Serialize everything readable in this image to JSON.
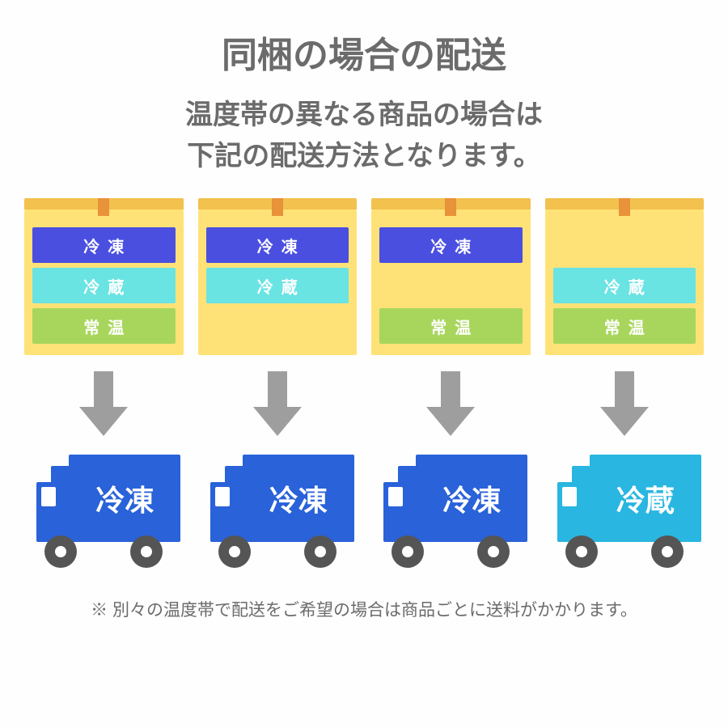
{
  "colors": {
    "text_main": "#6b6b6b",
    "box_fill": "#ffe277",
    "box_lid": "#f2c14e",
    "box_tape": "#e8923a",
    "frozen_bg": "#4a4fe0",
    "frozen_fg": "#ffffff",
    "chilled_bg": "#6ae3e3",
    "chilled_fg": "#ffffff",
    "ambient_bg": "#a8d65c",
    "ambient_fg": "#ffffff",
    "arrow": "#9e9e9e",
    "truck_frozen": "#2962d9",
    "truck_chilled": "#29b6e0",
    "wheel": "#555555"
  },
  "typography": {
    "title_size": 44,
    "subtitle_size": 34,
    "slot_size": 20,
    "truck_label_size": 36,
    "footnote_size": 21
  },
  "title": "同梱の場合の配送",
  "subtitle_line1": "温度帯の異なる商品の場合は",
  "subtitle_line2": "下記の配送方法となります。",
  "labels": {
    "frozen": "冷凍",
    "chilled": "冷蔵",
    "ambient": "常温"
  },
  "columns": [
    {
      "slots": [
        "frozen",
        "chilled",
        "ambient"
      ],
      "truck": "frozen"
    },
    {
      "slots": [
        "frozen",
        "chilled",
        null
      ],
      "truck": "frozen"
    },
    {
      "slots": [
        "frozen",
        null,
        "ambient"
      ],
      "truck": "frozen"
    },
    {
      "slots": [
        null,
        "chilled",
        "ambient"
      ],
      "truck": "chilled"
    }
  ],
  "truck_labels": {
    "frozen": "冷凍",
    "chilled": "冷蔵"
  },
  "footnote": "※ 別々の温度帯で配送をご希望の場合は商品ごとに送料がかかります。"
}
